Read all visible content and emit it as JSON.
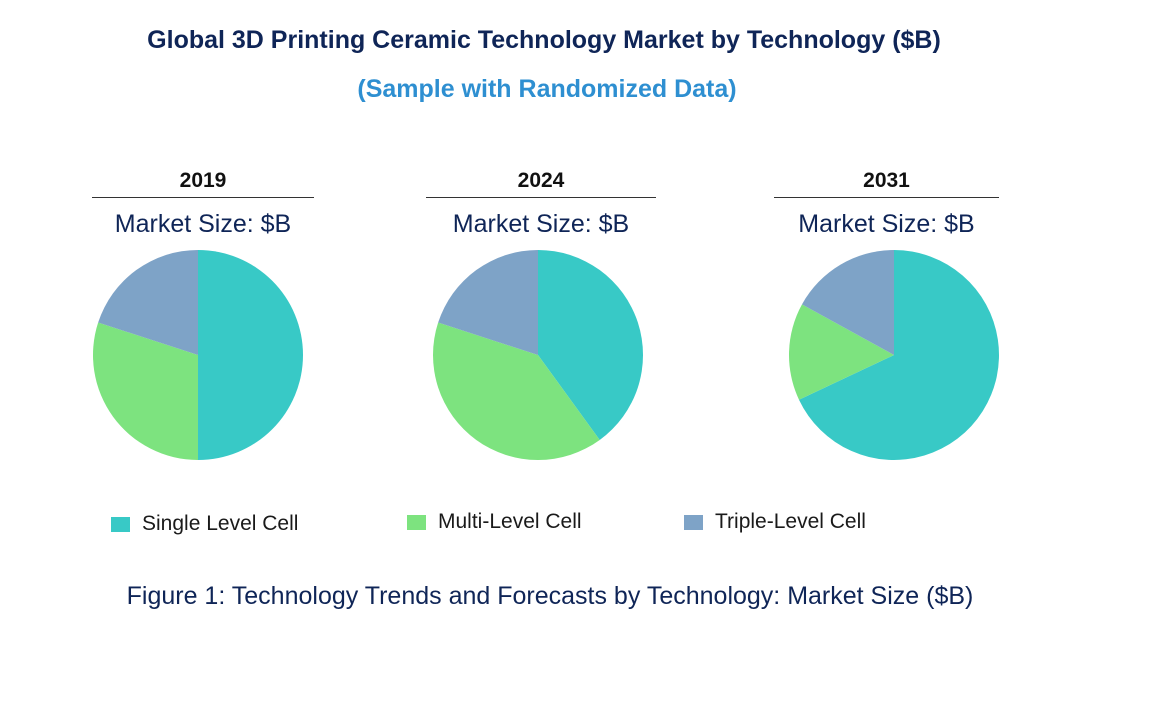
{
  "title": "Global 3D Printing Ceramic Technology Market by Technology ($B)",
  "subtitle": "(Sample with Randomized Data)",
  "caption": "Figure 1: Technology Trends and Forecasts by Technology: Market Size ($B)",
  "colors": {
    "single_level_cell": "#38c9c6",
    "multi_level_cell": "#7de37f",
    "triple_level_cell": "#7ea3c7"
  },
  "legend": [
    {
      "label": "Single Level Cell",
      "color": "#38c9c6"
    },
    {
      "label": "Multi-Level Cell",
      "color": "#7de37f"
    },
    {
      "label": "Triple-Level Cell",
      "color": "#7ea3c7"
    }
  ],
  "chart_data": [
    {
      "type": "pie",
      "title": "2019",
      "subtitle": "Market Size: $B",
      "categories": [
        "Single Level Cell",
        "Multi-Level Cell",
        "Triple-Level Cell"
      ],
      "values": [
        50,
        30,
        20
      ]
    },
    {
      "type": "pie",
      "title": "2024",
      "subtitle": "Market Size: $B",
      "categories": [
        "Single Level Cell",
        "Multi-Level Cell",
        "Triple-Level Cell"
      ],
      "values": [
        40,
        40,
        20
      ]
    },
    {
      "type": "pie",
      "title": "2031",
      "subtitle": "Market Size: $B",
      "categories": [
        "Single Level Cell",
        "Multi-Level Cell",
        "Triple-Level Cell"
      ],
      "values": [
        68,
        15,
        17
      ]
    }
  ]
}
